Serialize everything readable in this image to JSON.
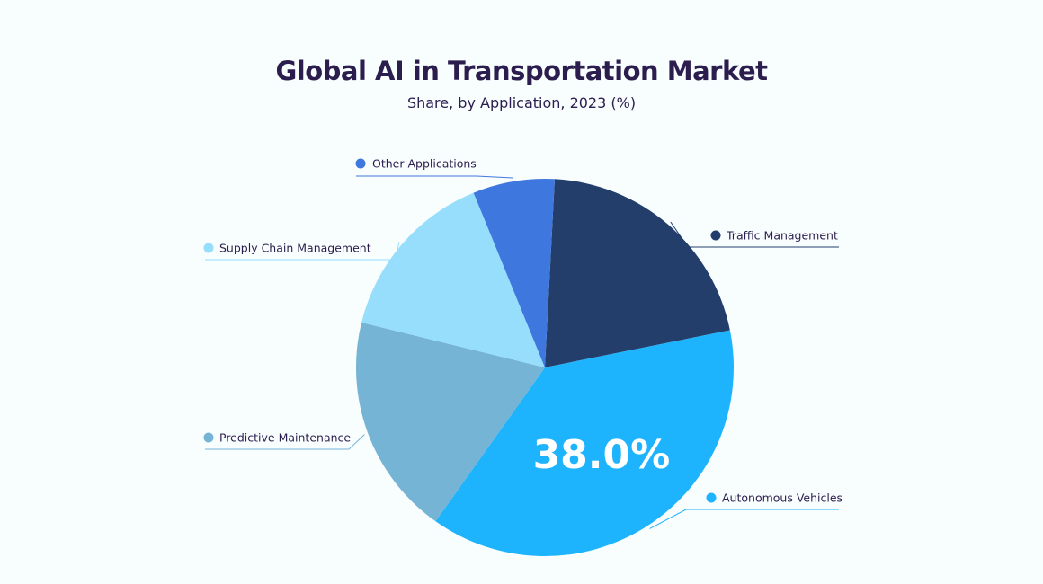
{
  "chart_data": {
    "type": "pie",
    "title": "Global AI in Transportation Market",
    "subtitle": "Share, by Application, 2023 (%)",
    "slices": [
      {
        "name": "Traffic Management",
        "value": 21,
        "color": "#243e6c"
      },
      {
        "name": "Autonomous Vehicles",
        "value": 38.0,
        "color": "#1eb4fd",
        "label": "38.0%"
      },
      {
        "name": "Predictive Maintenance",
        "value": 19,
        "color": "#75b4d5"
      },
      {
        "name": "Supply Chain Management",
        "value": 15,
        "color": "#97defc"
      },
      {
        "name": "Other Applications",
        "value": 7,
        "color": "#3e78de"
      }
    ],
    "legend_placement": "callouts"
  }
}
